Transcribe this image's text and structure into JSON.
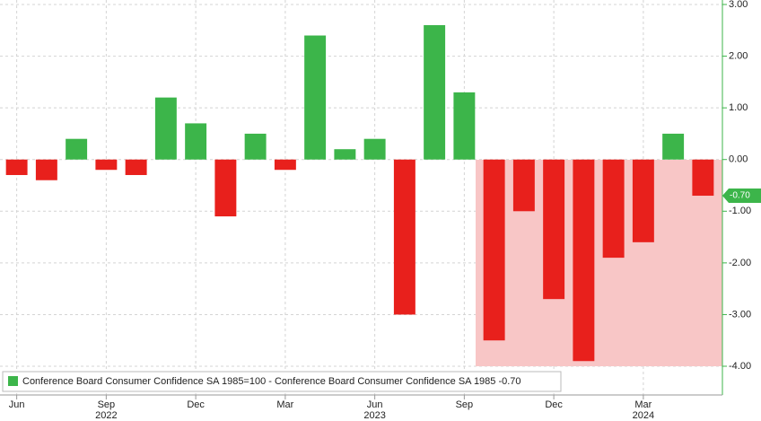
{
  "chart_data": {
    "type": "bar",
    "legend": "Conference Board Consumer Confidence SA 1985=100 - Conference Board Consumer Confidence SA 1985 -0.70",
    "categories": [
      "Jun",
      null,
      null,
      "Sep",
      null,
      null,
      "Dec",
      null,
      null,
      "Mar",
      null,
      null,
      "Jun",
      null,
      null,
      "Sep",
      null,
      null,
      "Dec",
      null,
      null,
      "Mar",
      null,
      null
    ],
    "years": [
      "2022",
      "2023",
      "2024"
    ],
    "values": [
      -0.3,
      -0.4,
      0.4,
      -0.2,
      -0.3,
      1.2,
      0.7,
      -1.1,
      0.5,
      -0.2,
      2.4,
      0.2,
      0.4,
      -3.0,
      2.6,
      1.3,
      -3.5,
      -1.0,
      -2.7,
      -3.9,
      -1.9,
      -1.6,
      0.5,
      -0.7
    ],
    "colors": {
      "positive": "#3cb54a",
      "negative": "#e8201c"
    },
    "ylim": [
      -4.5,
      3.1
    ],
    "yticks": [
      {
        "value": 3,
        "label": "3.00"
      },
      {
        "value": 2,
        "label": "2.00"
      },
      {
        "value": 1,
        "label": "1.00"
      },
      {
        "value": 0,
        "label": "0.00"
      },
      {
        "value": -1,
        "label": "-1.00"
      },
      {
        "value": -2,
        "label": "-2.00"
      },
      {
        "value": -3,
        "label": "-3.00"
      },
      {
        "value": -4,
        "label": "-4.00"
      }
    ],
    "current_value": {
      "value": -0.7,
      "label": "-0.70"
    },
    "grid": true
  }
}
